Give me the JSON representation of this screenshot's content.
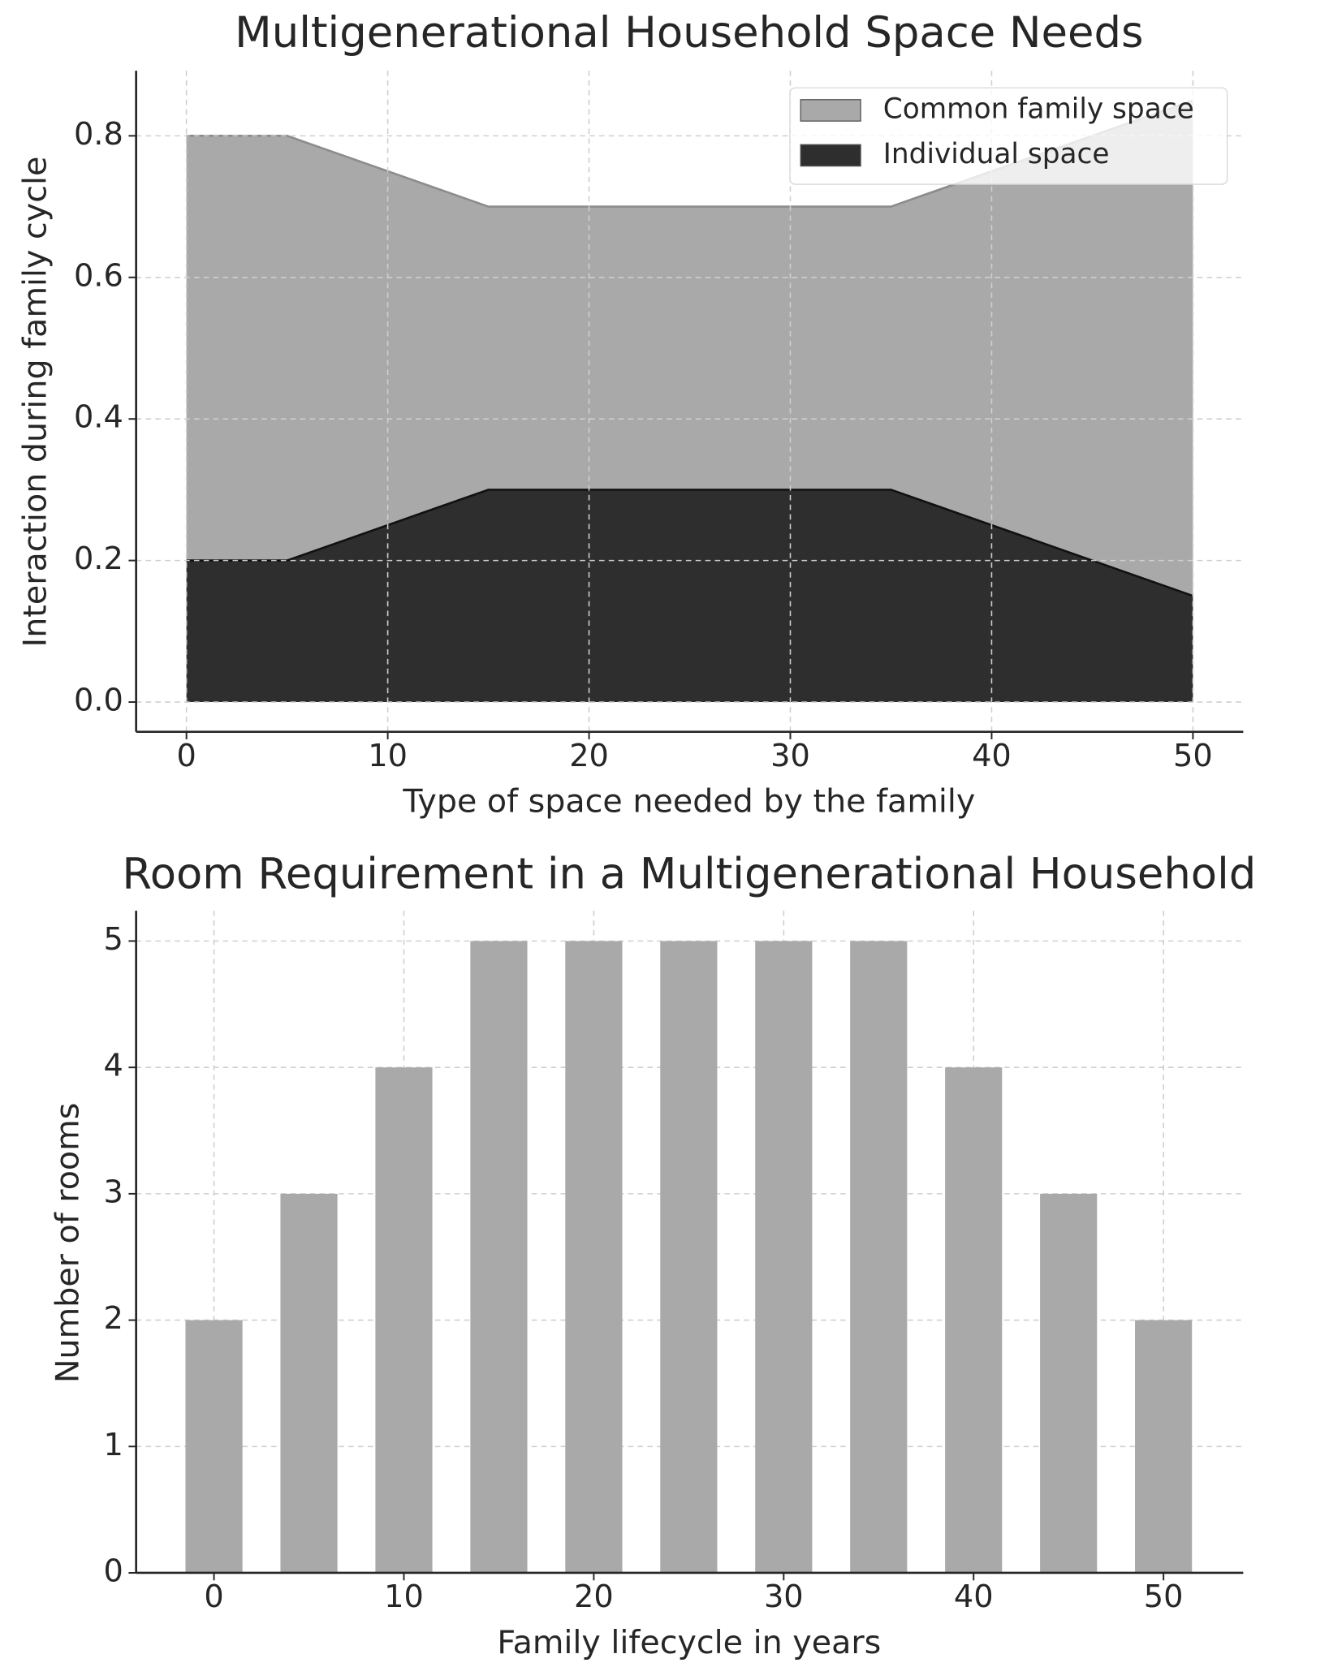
{
  "chart_data": [
    {
      "type": "area",
      "title": "Multigenerational Household Space Needs",
      "x_label": "Type of space needed by the family",
      "y_label": "Interaction during family cycle",
      "x": [
        0,
        5,
        15,
        35,
        50
      ],
      "series": [
        {
          "name": "Common family space",
          "color": "#a9a9a9",
          "values": [
            0.8,
            0.8,
            0.7,
            0.7,
            0.85
          ]
        },
        {
          "name": "Individual space",
          "color": "#2e2e2e",
          "values": [
            0.2,
            0.2,
            0.3,
            0.3,
            0.15
          ]
        }
      ],
      "xlim": [
        -2.5,
        52.5
      ],
      "ylim": [
        -0.042,
        0.892
      ],
      "xticks": [
        0,
        10,
        20,
        30,
        40,
        50
      ],
      "yticks": [
        {
          "value": 0,
          "label": "0.0"
        },
        0.2,
        0.4,
        0.6,
        0.8
      ],
      "grid": true,
      "legend": "upper right"
    },
    {
      "type": "bar",
      "title": "Room Requirement in a Multigenerational Household",
      "x_label": "Family lifecycle in years",
      "y_label": "Number of rooms",
      "x": [
        0,
        5,
        10,
        15,
        20,
        25,
        30,
        35,
        40,
        45,
        50
      ],
      "values": [
        2,
        3,
        4,
        5,
        5,
        5,
        5,
        5,
        4,
        3,
        2
      ],
      "color": "#a9a9a9",
      "xlim": [
        -4.1,
        54.2
      ],
      "ylim": [
        0,
        5.24
      ],
      "xticks": [
        0,
        10,
        20,
        30,
        40,
        50
      ],
      "yticks": [
        0,
        1,
        2,
        3,
        4,
        5
      ],
      "grid": true
    }
  ]
}
